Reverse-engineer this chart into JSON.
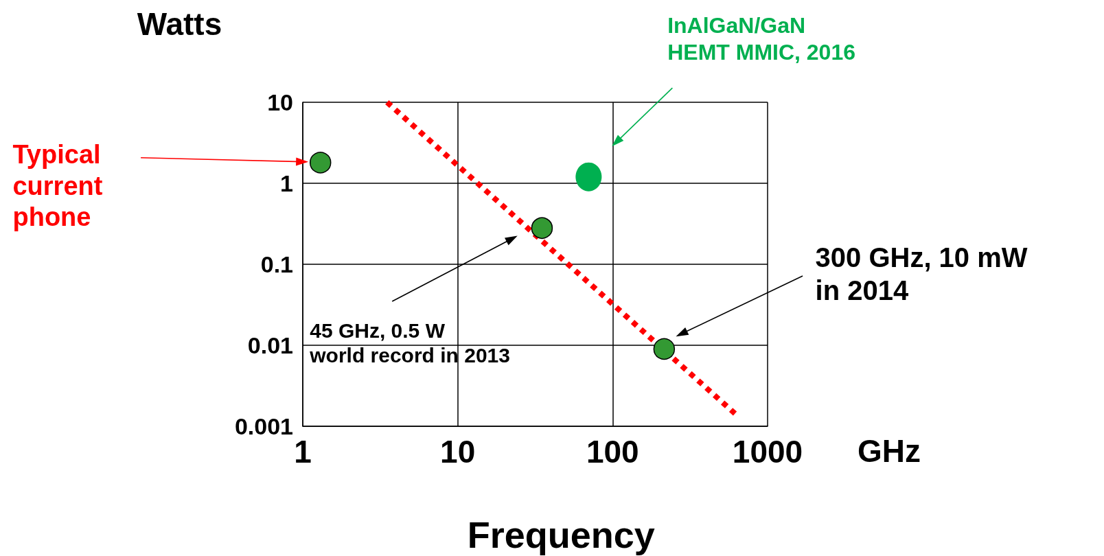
{
  "chart_data": {
    "type": "scatter",
    "ylabel": "Watts",
    "xlabel": "Frequency",
    "log": "xy",
    "xlim": [
      1,
      1000
    ],
    "xticks": [
      1,
      10,
      100,
      1000
    ],
    "ylim": [
      0.001,
      10
    ],
    "yticks": [
      0.001,
      0.01,
      0.1,
      1,
      10
    ],
    "grid": true,
    "marker": "circle",
    "series": [
      {
        "color": "#339933",
        "x": [
          1.3,
          35,
          215
        ],
        "values": [
          1.8,
          0.28,
          0.009
        ]
      },
      {
        "color": "#00b050",
        "x": [
          70
        ],
        "values": [
          1.2
        ]
      },
      {
        "type": "line",
        "color": "#ff0000",
        "line_style": "dotted",
        "marker": "none",
        "x": [
          3.5,
          625
        ],
        "values": [
          10,
          0.0014
        ]
      }
    ],
    "annotations": [
      "Typical\ncurrent\nphone",
      "InAlGaN/GaN\nHEMT MMIC, 2016",
      "45 GHz, 0.5 W\nworld record in 2013",
      "300 GHz, 10 mW\nin 2014",
      "GHz"
    ]
  }
}
